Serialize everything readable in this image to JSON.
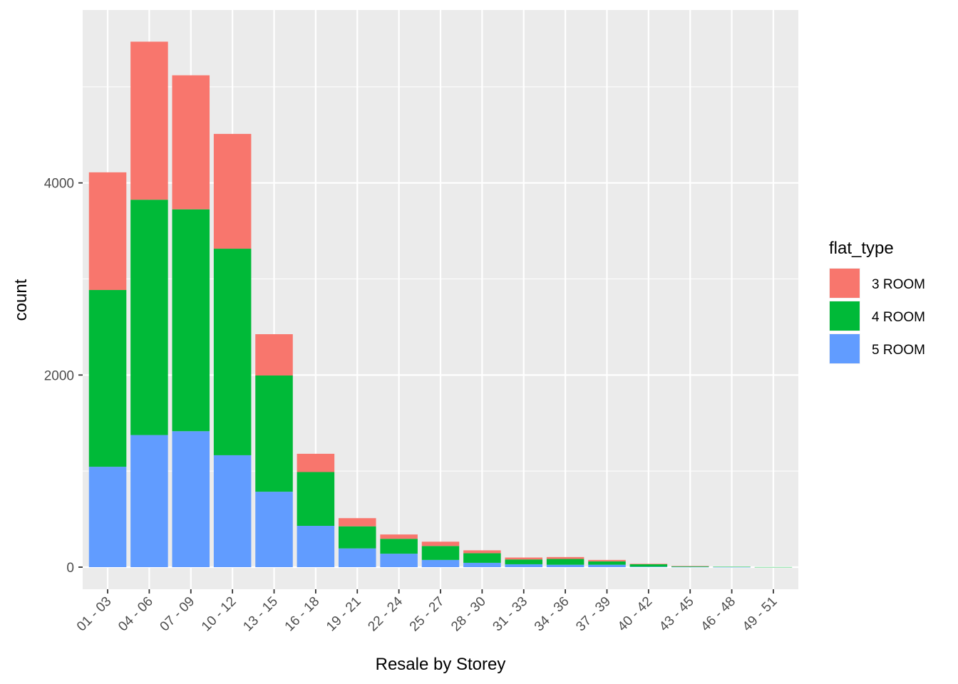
{
  "chart_data": {
    "type": "bar",
    "stacked": true,
    "categories": [
      "01 - 03",
      "04 - 06",
      "07 - 09",
      "10 - 12",
      "13 - 15",
      "16 - 18",
      "19 - 21",
      "22 - 24",
      "25 - 27",
      "28 - 30",
      "31 - 33",
      "34 - 36",
      "37 - 39",
      "40 - 42",
      "43 - 45",
      "46 - 48",
      "49 - 51"
    ],
    "series": [
      {
        "name": "3 ROOM",
        "color": "#F8766D",
        "values": [
          1225,
          1645,
          1395,
          1195,
          430,
          190,
          85,
          45,
          45,
          30,
          20,
          20,
          15,
          5,
          2,
          0,
          0
        ]
      },
      {
        "name": "4 ROOM",
        "color": "#00BA38",
        "values": [
          1840,
          2450,
          2310,
          2150,
          1210,
          560,
          230,
          155,
          145,
          100,
          50,
          60,
          35,
          25,
          8,
          3,
          1
        ]
      },
      {
        "name": "5 ROOM",
        "color": "#619CFF",
        "values": [
          1045,
          1375,
          1415,
          1165,
          785,
          430,
          195,
          140,
          75,
          45,
          30,
          25,
          25,
          5,
          2,
          1,
          0
        ]
      }
    ],
    "stack_order_bottom_to_top": [
      "5 ROOM",
      "4 ROOM",
      "3 ROOM"
    ],
    "xlabel": "Resale by Storey",
    "ylabel": "count",
    "y_ticks": [
      0,
      2000,
      4000
    ],
    "ylim": [
      -230,
      5800
    ],
    "grid": true,
    "x_tick_rotation_deg": 45,
    "legend": {
      "title": "flat_type",
      "placement": "right",
      "items": [
        "3 ROOM",
        "4 ROOM",
        "5 ROOM"
      ]
    },
    "panel_background": "#EBEBEB",
    "grid_color": "#FFFFFF"
  }
}
